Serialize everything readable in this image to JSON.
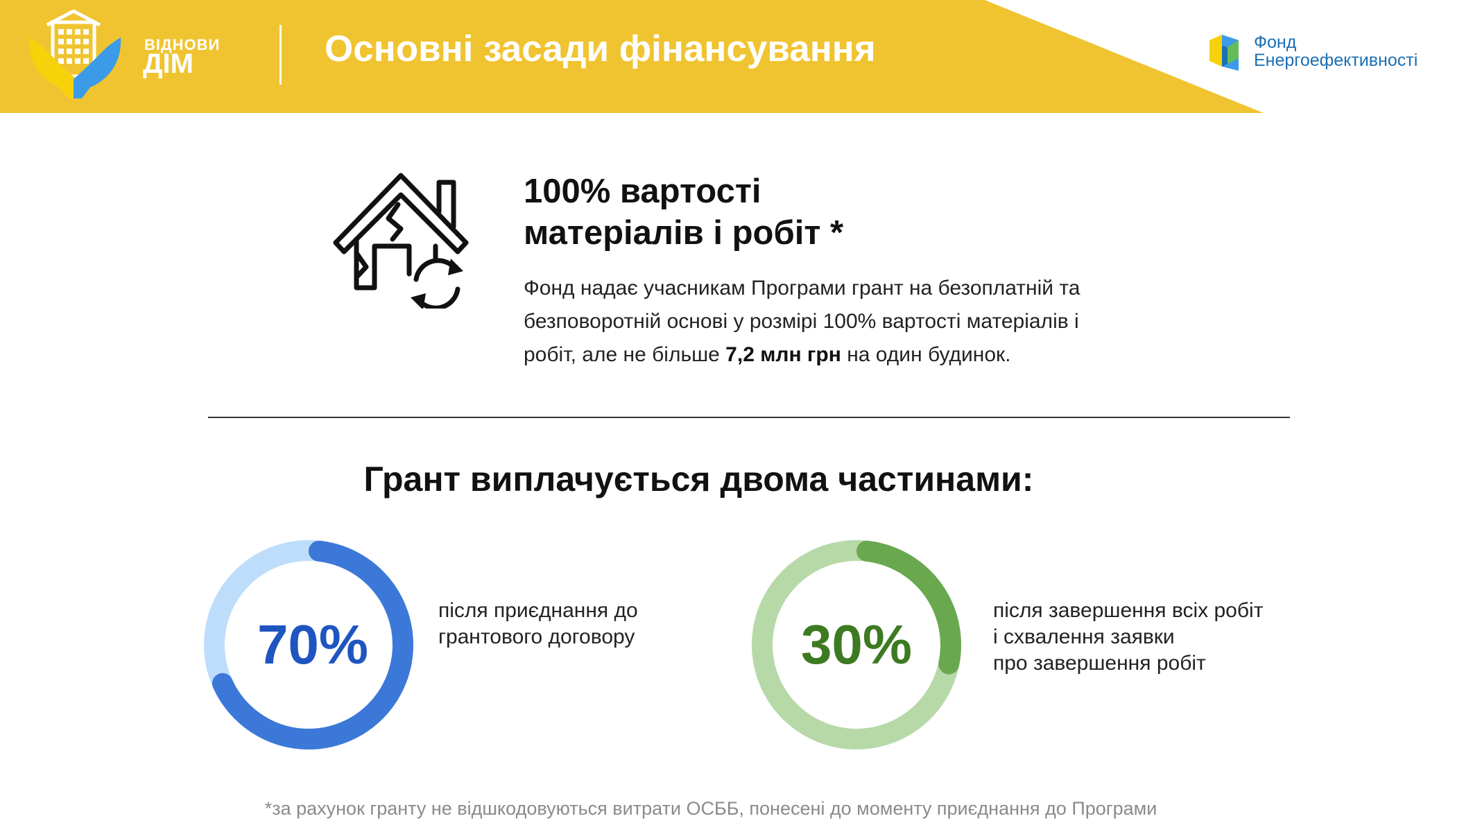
{
  "header": {
    "logo_line1": "ВІДНОВИ",
    "logo_line2": "ДІМ",
    "title": "Основні засади фінансування",
    "fund_line1": "Фонд",
    "fund_line2": "Енергоефективності"
  },
  "feature": {
    "icon": "house-renovation-icon",
    "title_line1": "100% вартості",
    "title_line2": "матеріалів і робіт *",
    "text_part1": "Фонд надає учасникам Програми грант на безоплатній та безповоротній основі у розмірі 100% вартості матеріалів і робіт, але не більше ",
    "text_bold": "7,2 млн грн",
    "text_part2": " на один будинок."
  },
  "grant": {
    "title": "Грант виплачується двома частинами:",
    "parts": [
      {
        "percent_label": "70%",
        "share": 0.7,
        "description": "після приєднання до\nгрантового договору"
      },
      {
        "percent_label": "30%",
        "share": 0.3,
        "description": "після завершення всіх робіт\nі схвалення заявки\nпро завершення робіт"
      }
    ]
  },
  "footnote": "*за рахунок гранту не відшкодовуються витрати ОСББ, понесені до моменту приєднання до Програми",
  "colors": {
    "header_yellow": "#F0C431",
    "blue_ring": "#3C78D8",
    "blue_ring_light": "#BEDDFA",
    "blue_text": "#1F55C0",
    "green_ring": "#6AA84F",
    "green_ring_light": "#B7D9A8",
    "green_text": "#3D7A21",
    "ukraine_blue": "#3C9BE8",
    "ukraine_yellow": "#F5D20A"
  }
}
